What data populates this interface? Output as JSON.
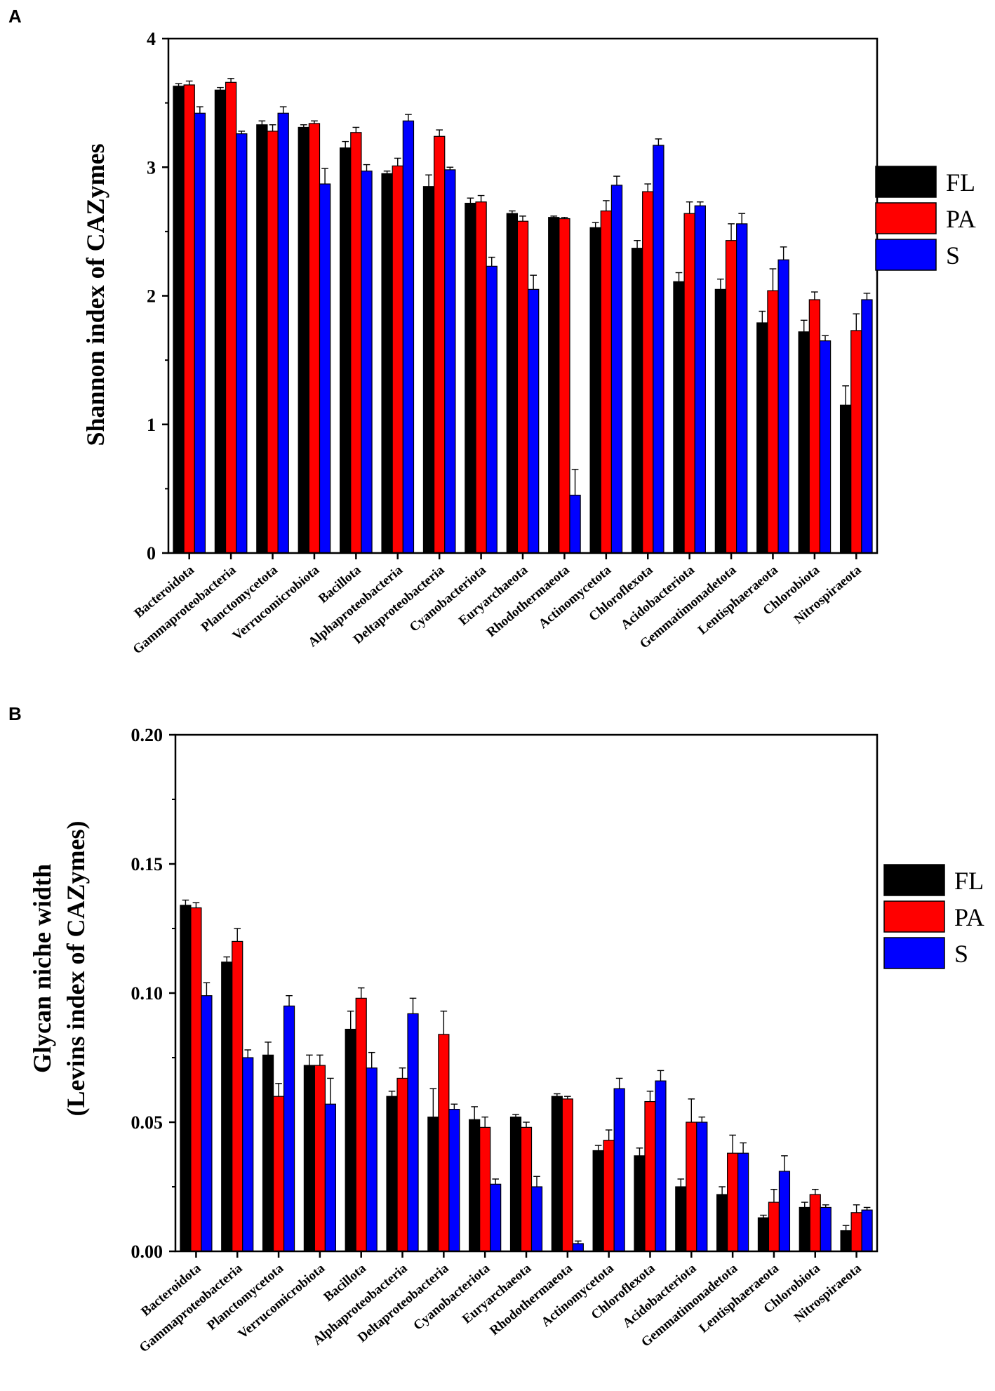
{
  "chart_data": [
    {
      "panel": "A",
      "type": "bar",
      "title": "",
      "xlabel": "",
      "ylabel": "Shannon index of CAZymes",
      "ylim": [
        0,
        4
      ],
      "yticks": [
        "0",
        "1",
        "2",
        "3",
        "4"
      ],
      "grid": false,
      "legend_position": "right",
      "categories": [
        "Bacteroidota",
        "Gammaproteobacteria",
        "Planctomycetota",
        "Verrucomicrobiota",
        "Bacillota",
        "Alphaproteobacteria",
        "Deltaproteobacteria",
        "Cyanobacteriota",
        "Euryarchaeota",
        "Rhodothermaeota",
        "Actinomycetota",
        "Chloroflexota",
        "Acidobacteriota",
        "Gemmatimonadetota",
        "Lentisphaeraeota",
        "Chlorobiota",
        "Nitrospiraeota"
      ],
      "series": [
        {
          "name": "FL",
          "color": "#000000",
          "values": [
            3.63,
            3.6,
            3.33,
            3.31,
            3.15,
            2.95,
            2.85,
            2.72,
            2.64,
            2.61,
            2.53,
            2.37,
            2.11,
            2.05,
            1.79,
            1.72,
            1.15
          ],
          "errors": [
            0.02,
            0.02,
            0.03,
            0.02,
            0.05,
            0.02,
            0.09,
            0.04,
            0.02,
            0.01,
            0.04,
            0.06,
            0.07,
            0.08,
            0.09,
            0.09,
            0.15
          ]
        },
        {
          "name": "PA",
          "color": "#ff0000",
          "values": [
            3.64,
            3.66,
            3.28,
            3.34,
            3.27,
            3.01,
            3.24,
            2.73,
            2.58,
            2.6,
            2.66,
            2.81,
            2.64,
            2.43,
            2.04,
            1.97,
            1.73
          ],
          "errors": [
            0.03,
            0.03,
            0.05,
            0.02,
            0.04,
            0.06,
            0.05,
            0.05,
            0.04,
            0.01,
            0.08,
            0.06,
            0.09,
            0.13,
            0.17,
            0.06,
            0.13
          ]
        },
        {
          "name": "S",
          "color": "#0000ff",
          "values": [
            3.42,
            3.26,
            3.42,
            2.87,
            2.97,
            3.36,
            2.98,
            2.23,
            2.05,
            0.45,
            2.86,
            3.17,
            2.7,
            2.56,
            2.28,
            1.65,
            1.97
          ],
          "errors": [
            0.05,
            0.02,
            0.05,
            0.12,
            0.05,
            0.05,
            0.02,
            0.07,
            0.11,
            0.2,
            0.07,
            0.05,
            0.03,
            0.08,
            0.1,
            0.04,
            0.05
          ]
        }
      ]
    },
    {
      "panel": "B",
      "type": "bar",
      "title": "",
      "xlabel": "",
      "ylabel": [
        "Glycan niche width",
        "(Levins index of CAZymes)"
      ],
      "ylim": [
        0,
        0.2
      ],
      "yticks": [
        "0.00",
        "0.05",
        "0.10",
        "0.15",
        "0.20"
      ],
      "grid": false,
      "legend_position": "right",
      "categories": [
        "Bacteroidota",
        "Gammaproteobacteria",
        "Planctomycetota",
        "Verrucomicrobiota",
        "Bacillota",
        "Alphaproteobacteria",
        "Deltaproteobacteria",
        "Cyanobacteriota",
        "Euryarchaeota",
        "Rhodothermaeota",
        "Actinomycetota",
        "Chloroflexota",
        "Acidobacteriota",
        "Gemmatimonadetota",
        "Lentisphaeraeota",
        "Chlorobiota",
        "Nitrospiraeota"
      ],
      "series": [
        {
          "name": "FL",
          "color": "#000000",
          "values": [
            0.134,
            0.112,
            0.076,
            0.072,
            0.086,
            0.06,
            0.052,
            0.051,
            0.052,
            0.06,
            0.039,
            0.037,
            0.025,
            0.022,
            0.013,
            0.017,
            0.008
          ],
          "errors": [
            0.002,
            0.002,
            0.005,
            0.004,
            0.007,
            0.002,
            0.011,
            0.005,
            0.001,
            0.001,
            0.002,
            0.003,
            0.003,
            0.003,
            0.001,
            0.002,
            0.002
          ]
        },
        {
          "name": "PA",
          "color": "#ff0000",
          "values": [
            0.133,
            0.12,
            0.06,
            0.072,
            0.098,
            0.067,
            0.084,
            0.048,
            0.048,
            0.059,
            0.043,
            0.058,
            0.05,
            0.038,
            0.019,
            0.022,
            0.015
          ],
          "errors": [
            0.002,
            0.005,
            0.005,
            0.004,
            0.004,
            0.004,
            0.009,
            0.004,
            0.002,
            0.001,
            0.004,
            0.004,
            0.009,
            0.007,
            0.005,
            0.002,
            0.003
          ]
        },
        {
          "name": "S",
          "color": "#0000ff",
          "values": [
            0.099,
            0.075,
            0.095,
            0.057,
            0.071,
            0.092,
            0.055,
            0.026,
            0.025,
            0.003,
            0.063,
            0.066,
            0.05,
            0.038,
            0.031,
            0.017,
            0.016
          ],
          "errors": [
            0.005,
            0.003,
            0.004,
            0.01,
            0.006,
            0.006,
            0.002,
            0.002,
            0.004,
            0.001,
            0.004,
            0.004,
            0.002,
            0.004,
            0.006,
            0.001,
            0.001
          ]
        }
      ]
    }
  ]
}
